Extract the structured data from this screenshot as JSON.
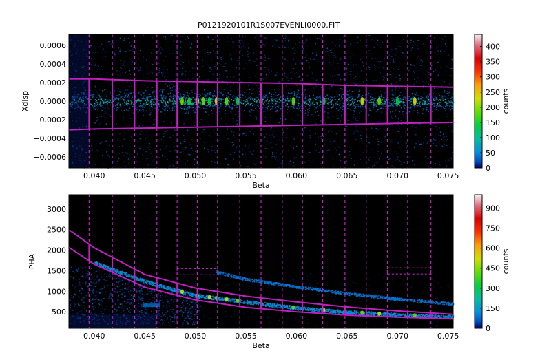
{
  "chart_data": [
    {
      "type": "heatmap",
      "title": "P0121920101R1S007EVENLI0000.FIT",
      "xlabel": "Beta",
      "ylabel": "Xdisp",
      "xlim": [
        0.0375,
        0.0755
      ],
      "ylim": [
        -0.00072,
        0.00072
      ],
      "xticks": [
        {
          "value": 0.04,
          "label": "0.040"
        },
        {
          "value": 0.045,
          "label": "0.045"
        },
        {
          "value": 0.05,
          "label": "0.050"
        },
        {
          "value": 0.055,
          "label": "0.055"
        },
        {
          "value": 0.06,
          "label": "0.060"
        },
        {
          "value": 0.065,
          "label": "0.065"
        },
        {
          "value": 0.07,
          "label": "0.070"
        },
        {
          "value": 0.075,
          "label": "0.075"
        }
      ],
      "yticks": [
        {
          "value": 0.0006,
          "label": "0.0006"
        },
        {
          "value": 0.0004,
          "label": "0.0004"
        },
        {
          "value": 0.0002,
          "label": "0.0002"
        },
        {
          "value": 0.0,
          "label": "0.0000"
        },
        {
          "value": -0.0002,
          "label": "−0.0002"
        },
        {
          "value": -0.0004,
          "label": "−0.0004"
        },
        {
          "value": -0.0006,
          "label": "−0.0006"
        }
      ],
      "colorbar": {
        "label": "counts",
        "range": [
          0,
          440
        ],
        "ticks": [
          {
            "value": 0,
            "label": "0"
          },
          {
            "value": 50,
            "label": "50"
          },
          {
            "value": 100,
            "label": "100"
          },
          {
            "value": 150,
            "label": "150"
          },
          {
            "value": 200,
            "label": "200"
          },
          {
            "value": 250,
            "label": "250"
          },
          {
            "value": 300,
            "label": "300"
          },
          {
            "value": 350,
            "label": "350"
          },
          {
            "value": 400,
            "label": "400"
          }
        ]
      },
      "band_center": 0.0,
      "region_upper": [
        [
          0.0375,
          0.00024
        ],
        [
          0.04,
          0.00024
        ],
        [
          0.045,
          0.00022
        ],
        [
          0.05,
          0.00021
        ],
        [
          0.055,
          0.0002
        ],
        [
          0.06,
          0.00019
        ],
        [
          0.065,
          0.00017
        ],
        [
          0.07,
          0.00016
        ],
        [
          0.0755,
          0.00015
        ]
      ],
      "region_lower": [
        [
          0.0375,
          -0.00031
        ],
        [
          0.04,
          -0.0003
        ],
        [
          0.045,
          -0.00029
        ],
        [
          0.05,
          -0.00028
        ],
        [
          0.055,
          -0.00027
        ],
        [
          0.06,
          -0.00026
        ],
        [
          0.065,
          -0.00025
        ],
        [
          0.07,
          -0.00024
        ],
        [
          0.0755,
          -0.00023
        ]
      ],
      "ccd_boundaries": [
        0.0395,
        0.0418,
        0.044,
        0.0462,
        0.0482,
        0.0502,
        0.0522,
        0.0544,
        0.0565,
        0.0586,
        0.0606,
        0.0626,
        0.0648,
        0.0669,
        0.069,
        0.071,
        0.0733
      ]
    },
    {
      "type": "heatmap",
      "xlabel": "Beta",
      "ylabel": "PHA",
      "xlim": [
        0.0375,
        0.0755
      ],
      "ylim": [
        100,
        3350
      ],
      "xticks": [
        {
          "value": 0.04,
          "label": "0.040"
        },
        {
          "value": 0.045,
          "label": "0.045"
        },
        {
          "value": 0.05,
          "label": "0.050"
        },
        {
          "value": 0.055,
          "label": "0.055"
        },
        {
          "value": 0.06,
          "label": "0.060"
        },
        {
          "value": 0.065,
          "label": "0.065"
        },
        {
          "value": 0.07,
          "label": "0.070"
        },
        {
          "value": 0.075,
          "label": "0.075"
        }
      ],
      "yticks": [
        {
          "value": 3000,
          "label": "3000"
        },
        {
          "value": 2500,
          "label": "2500"
        },
        {
          "value": 2000,
          "label": "2000"
        },
        {
          "value": 1500,
          "label": "1500"
        },
        {
          "value": 1000,
          "label": "1000"
        },
        {
          "value": 500,
          "label": "500"
        }
      ],
      "colorbar": {
        "label": "counts",
        "range": [
          0,
          1000
        ],
        "ticks": [
          {
            "value": 0,
            "label": "0"
          },
          {
            "value": 150,
            "label": "150"
          },
          {
            "value": 300,
            "label": "300"
          },
          {
            "value": 450,
            "label": "450"
          },
          {
            "value": 600,
            "label": "600"
          },
          {
            "value": 750,
            "label": "750"
          },
          {
            "value": 900,
            "label": "900"
          }
        ]
      },
      "upper_curve": [
        [
          0.0375,
          2500
        ],
        [
          0.04,
          2060
        ],
        [
          0.045,
          1410
        ],
        [
          0.05,
          1080
        ],
        [
          0.055,
          880
        ],
        [
          0.06,
          740
        ],
        [
          0.065,
          620
        ],
        [
          0.07,
          520
        ],
        [
          0.0755,
          440
        ]
      ],
      "lower_curve": [
        [
          0.0375,
          2070
        ],
        [
          0.04,
          1660
        ],
        [
          0.045,
          1100
        ],
        [
          0.05,
          790
        ],
        [
          0.055,
          610
        ],
        [
          0.06,
          500
        ],
        [
          0.065,
          420
        ],
        [
          0.07,
          370
        ],
        [
          0.0755,
          330
        ]
      ],
      "first_order_curve": [
        [
          0.04,
          1700
        ],
        [
          0.045,
          1250
        ],
        [
          0.05,
          900
        ],
        [
          0.055,
          750
        ],
        [
          0.06,
          600
        ],
        [
          0.065,
          500
        ],
        [
          0.07,
          430
        ],
        [
          0.0755,
          380
        ]
      ],
      "second_order_curve": [
        [
          0.052,
          1480
        ],
        [
          0.055,
          1300
        ],
        [
          0.06,
          1120
        ],
        [
          0.065,
          950
        ],
        [
          0.07,
          820
        ],
        [
          0.0755,
          700
        ]
      ],
      "extra_boxes": [
        {
          "x0": 0.0482,
          "x1": 0.0522,
          "y0": 1400,
          "y1": 1550
        },
        {
          "x0": 0.069,
          "x1": 0.0733,
          "y0": 1420,
          "y1": 1570
        }
      ],
      "ccd_boundaries": [
        0.0395,
        0.0418,
        0.044,
        0.0462,
        0.0482,
        0.0502,
        0.0522,
        0.0544,
        0.0565,
        0.0586,
        0.0606,
        0.0626,
        0.0648,
        0.0669,
        0.069,
        0.071,
        0.0733
      ]
    }
  ]
}
